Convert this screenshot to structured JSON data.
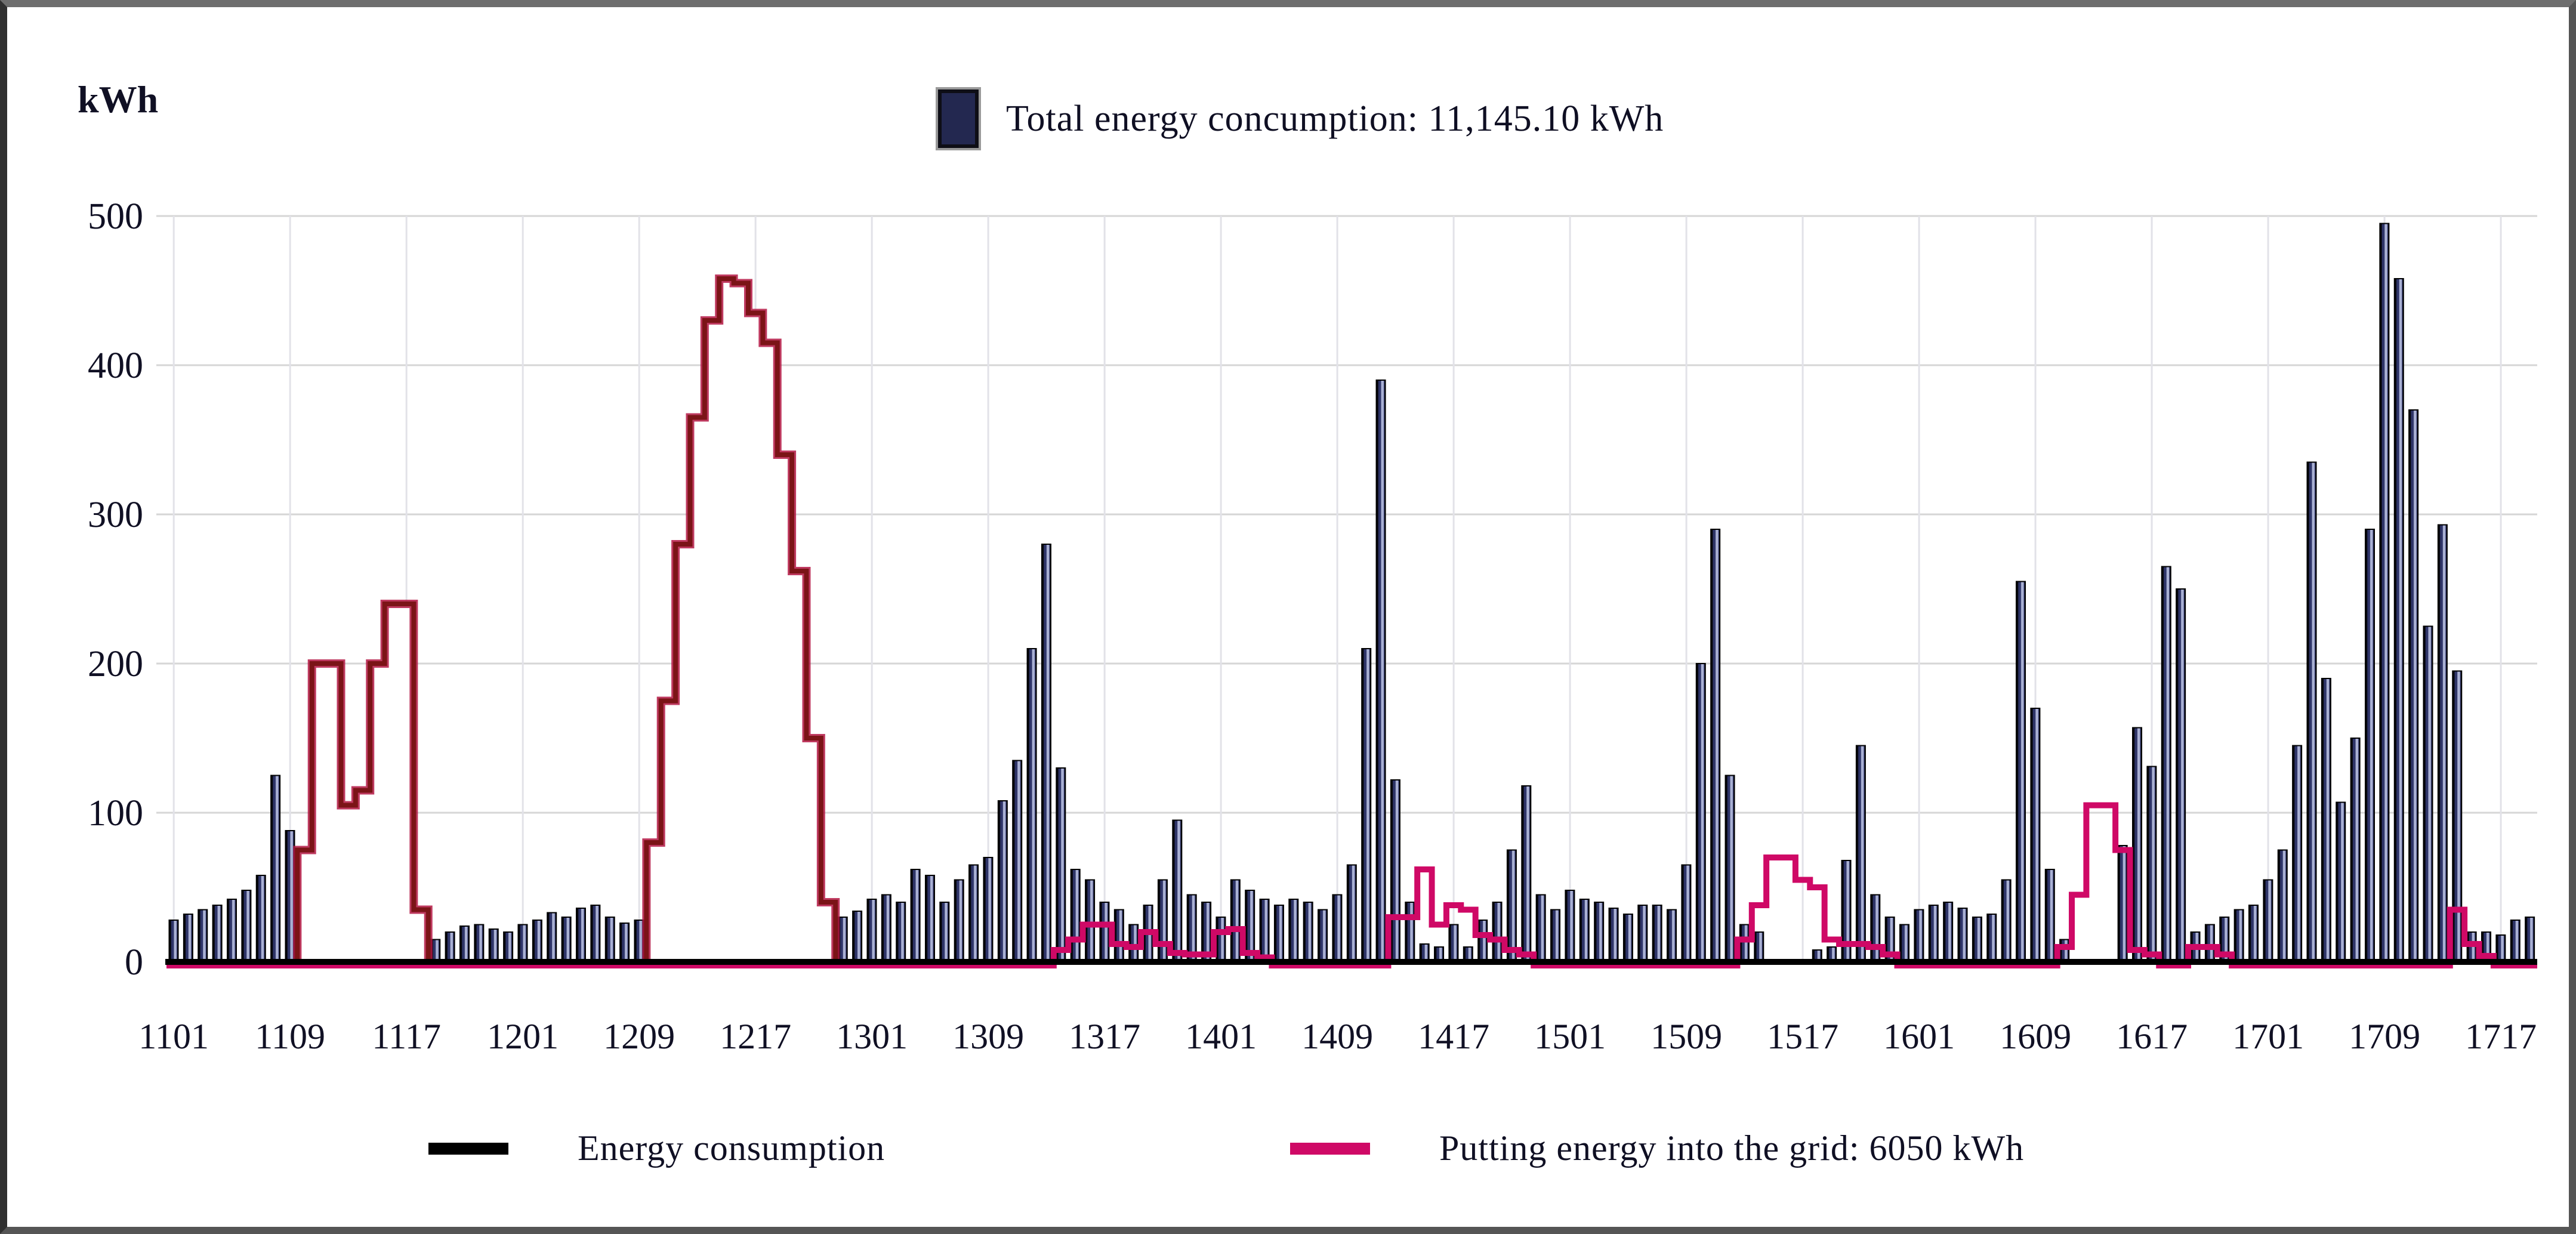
{
  "unit_label": "kWh",
  "legend_top": {
    "label": "Total energy concumption: 11,145.10 kWh",
    "marker_color": "#232850"
  },
  "legend_bottom": {
    "consumption": {
      "label": "Energy consumption",
      "color": "#000000"
    },
    "grid_feed": {
      "label": "Putting energy into the grid: 6050 kWh",
      "color": "#cf0966"
    }
  },
  "chart_data": {
    "type": "bar",
    "title": "Total energy concumption: 11,145.10 kWh",
    "ylabel": "kWh",
    "ylim": [
      0,
      500
    ],
    "yticks": [
      0,
      100,
      200,
      300,
      400,
      500
    ],
    "grid": true,
    "x_tick_labels": [
      "1101",
      "1109",
      "1117",
      "1201",
      "1209",
      "1217",
      "1301",
      "1309",
      "1317",
      "1401",
      "1409",
      "1417",
      "1501",
      "1509",
      "1517",
      "1601",
      "1609",
      "1617",
      "1701",
      "1709",
      "1717"
    ],
    "bars_per_tick": 8,
    "totals": {
      "total_energy_consumption_kwh": "11,145.10",
      "putting_energy_into_grid_kwh": "6050"
    },
    "colors": {
      "bar_core": "#2e3468",
      "bar_highlight": "#aab1d4",
      "bar_edge": "#05060d",
      "bar_outline": "#000000",
      "consumption_step_line": "#7b1417",
      "consumption_step_fringe": "#b41744",
      "grid_feed_line": "#cf0966",
      "baseline": "#000000",
      "gridline": "#d6d6d6",
      "gridline_vertical": "#e2e2e8",
      "axis_text": "#101024"
    },
    "series": [
      {
        "name": "Total energy consumption (daily bars)",
        "render": "bar",
        "values": [
          28,
          32,
          35,
          38,
          42,
          48,
          58,
          125,
          88,
          0,
          0,
          0,
          0,
          0,
          0,
          0,
          0,
          0,
          15,
          20,
          24,
          25,
          22,
          20,
          25,
          28,
          33,
          30,
          36,
          38,
          30,
          26,
          28,
          0,
          0,
          0,
          0,
          0,
          0,
          0,
          0,
          0,
          0,
          0,
          0,
          0,
          30,
          34,
          42,
          45,
          40,
          62,
          58,
          40,
          55,
          65,
          70,
          108,
          135,
          210,
          280,
          130,
          62,
          55,
          40,
          35,
          25,
          38,
          55,
          95,
          45,
          40,
          30,
          55,
          48,
          42,
          38,
          42,
          40,
          35,
          45,
          65,
          210,
          390,
          122,
          40,
          12,
          10,
          25,
          10,
          28,
          40,
          75,
          118,
          45,
          35,
          48,
          42,
          40,
          36,
          32,
          38,
          38,
          35,
          65,
          200,
          290,
          125,
          25,
          20,
          0,
          0,
          0,
          8,
          10,
          68,
          145,
          45,
          30,
          25,
          35,
          38,
          40,
          36,
          30,
          32,
          55,
          255,
          170,
          62,
          15,
          0,
          0,
          0,
          78,
          157,
          131,
          265,
          250,
          20,
          25,
          30,
          35,
          38,
          55,
          75,
          145,
          335,
          190,
          107,
          150,
          290,
          495,
          458,
          370,
          225,
          293,
          195,
          20,
          20,
          18,
          28,
          30
        ]
      },
      {
        "name": "Energy consumption (step line)",
        "render": "step-outline",
        "values": [
          0,
          0,
          0,
          0,
          0,
          0,
          0,
          0,
          0,
          75,
          200,
          200,
          105,
          115,
          200,
          240,
          240,
          35,
          0,
          0,
          0,
          0,
          0,
          0,
          0,
          0,
          0,
          0,
          0,
          0,
          0,
          0,
          0,
          80,
          175,
          280,
          365,
          430,
          458,
          455,
          435,
          415,
          340,
          262,
          150,
          40,
          0,
          0,
          0,
          0,
          0,
          0,
          0,
          0,
          0,
          0,
          0,
          0,
          0,
          0,
          0,
          0,
          0,
          0,
          0,
          0,
          0,
          0,
          0,
          0,
          0,
          0,
          0,
          0,
          0,
          0,
          0,
          0,
          0,
          0,
          0,
          0,
          0,
          0,
          0,
          0,
          0,
          0,
          0,
          0,
          0,
          0,
          0,
          0,
          0,
          0,
          0,
          0,
          0,
          0,
          0,
          0,
          0,
          0,
          0,
          0,
          0,
          0,
          0,
          0,
          0,
          0,
          0,
          0,
          0,
          0,
          0,
          0,
          0,
          0,
          0,
          0,
          0,
          0,
          0,
          0,
          0,
          0,
          0,
          0,
          0,
          0,
          0,
          0,
          0,
          0,
          0,
          0,
          0,
          0,
          0,
          0,
          0,
          0,
          0,
          0,
          0,
          0,
          0,
          0,
          0,
          0,
          0,
          0,
          0,
          0,
          0,
          0,
          0,
          0,
          0,
          0,
          0
        ]
      },
      {
        "name": "Putting energy into the grid (step line)",
        "render": "step-continuous",
        "values": [
          0,
          0,
          0,
          0,
          0,
          0,
          0,
          0,
          0,
          0,
          0,
          0,
          0,
          0,
          0,
          0,
          0,
          0,
          0,
          0,
          0,
          0,
          0,
          0,
          0,
          0,
          0,
          0,
          0,
          0,
          0,
          0,
          0,
          0,
          0,
          0,
          0,
          0,
          0,
          0,
          0,
          0,
          0,
          0,
          0,
          0,
          0,
          0,
          0,
          0,
          0,
          0,
          0,
          0,
          0,
          0,
          0,
          0,
          0,
          0,
          0,
          8,
          15,
          25,
          25,
          12,
          10,
          20,
          12,
          6,
          5,
          5,
          20,
          22,
          6,
          3,
          0,
          0,
          0,
          0,
          0,
          0,
          0,
          0,
          30,
          30,
          62,
          25,
          38,
          35,
          18,
          15,
          8,
          5,
          0,
          0,
          0,
          0,
          0,
          0,
          0,
          0,
          0,
          0,
          0,
          0,
          0,
          0,
          15,
          38,
          70,
          70,
          55,
          50,
          15,
          12,
          12,
          10,
          5,
          0,
          0,
          0,
          0,
          0,
          0,
          0,
          0,
          0,
          0,
          0,
          10,
          45,
          105,
          105,
          75,
          8,
          5,
          0,
          0,
          10,
          10,
          5,
          0,
          0,
          0,
          0,
          0,
          0,
          0,
          0,
          0,
          0,
          0,
          0,
          0,
          0,
          0,
          35,
          12,
          4,
          0,
          0,
          0
        ]
      }
    ]
  }
}
